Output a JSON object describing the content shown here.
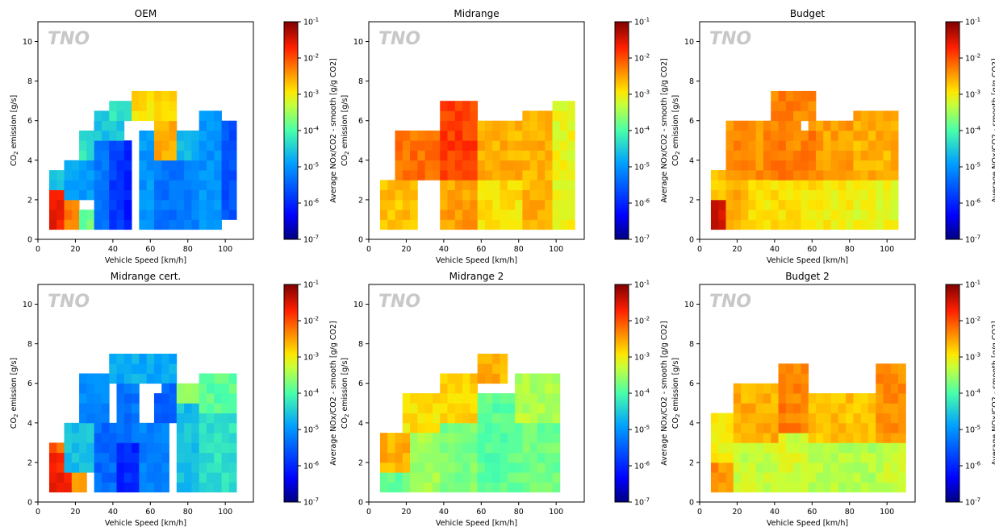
{
  "colorbar": {
    "label": "Average NOx/CO2 - smooth [g/g CO2]",
    "scale": "log",
    "range": [
      1e-07,
      0.1
    ],
    "colormap": "jet",
    "ticks": [
      {
        "base": "10",
        "exp": "-1"
      },
      {
        "base": "10",
        "exp": "-2"
      },
      {
        "base": "10",
        "exp": "-3"
      },
      {
        "base": "10",
        "exp": "-4"
      },
      {
        "base": "10",
        "exp": "-5"
      },
      {
        "base": "10",
        "exp": "-6"
      },
      {
        "base": "10",
        "exp": "-7"
      }
    ]
  },
  "axes": {
    "xlabel": "Vehicle Speed [km/h]",
    "ylabel_main": "CO",
    "ylabel_sub": "2",
    "ylabel_rest": " emission [g/s]",
    "xlim": [
      0,
      115
    ],
    "ylim": [
      0,
      11
    ],
    "xticks": [
      "0",
      "20",
      "40",
      "60",
      "80",
      "100"
    ],
    "yticks": [
      "0",
      "2",
      "4",
      "6",
      "8",
      "10"
    ]
  },
  "watermark": "TNO",
  "chart_data": [
    {
      "type": "heatmap",
      "title": "OEM",
      "value_scale": "log10 NOx/CO2 [g/g CO2]",
      "bin_width_kmh": 4,
      "bin_height_gs": 0.5,
      "zones": [
        {
          "x": [
            6,
            14
          ],
          "y": [
            0.5,
            2.5
          ],
          "log": -1.6
        },
        {
          "x": [
            14,
            22
          ],
          "y": [
            0.5,
            2
          ],
          "log": -2.3
        },
        {
          "x": [
            22,
            30
          ],
          "y": [
            0.5,
            1.5
          ],
          "log": -3.8
        },
        {
          "x": [
            6,
            14
          ],
          "y": [
            2.5,
            3.5
          ],
          "log": -4.5
        },
        {
          "x": [
            14,
            30
          ],
          "y": [
            2,
            4
          ],
          "log": -4.9
        },
        {
          "x": [
            22,
            30
          ],
          "y": [
            4,
            5.5
          ],
          "log": -4.3
        },
        {
          "x": [
            30,
            38
          ],
          "y": [
            0.5,
            6
          ],
          "log": -5.3
        },
        {
          "x": [
            38,
            46
          ],
          "y": [
            0.5,
            5
          ],
          "log": -5.8
        },
        {
          "x": [
            46,
            50
          ],
          "y": [
            0.5,
            5
          ],
          "log": -6.1
        },
        {
          "x": [
            30,
            46
          ],
          "y": [
            5,
            6.5
          ],
          "log": -4.6
        },
        {
          "x": [
            38,
            50
          ],
          "y": [
            6,
            7
          ],
          "log": -4.2
        },
        {
          "x": [
            54,
            62
          ],
          "y": [
            0.5,
            6
          ],
          "log": -5.0
        },
        {
          "x": [
            62,
            74
          ],
          "y": [
            0.5,
            4
          ],
          "log": -5.3
        },
        {
          "x": [
            62,
            74
          ],
          "y": [
            4,
            6
          ],
          "log": -2.6
        },
        {
          "x": [
            50,
            74
          ],
          "y": [
            6,
            7.5
          ],
          "log": -2.9
        },
        {
          "x": [
            74,
            86
          ],
          "y": [
            0.5,
            4
          ],
          "log": -5.2
        },
        {
          "x": [
            74,
            86
          ],
          "y": [
            4,
            5.5
          ],
          "log": -4.7
        },
        {
          "x": [
            86,
            98
          ],
          "y": [
            0.5,
            6.5
          ],
          "log": -5.0
        },
        {
          "x": [
            98,
            106
          ],
          "y": [
            1,
            6
          ],
          "log": -5.6
        }
      ],
      "holes": [
        {
          "x": [
            50,
            54
          ],
          "y": [
            0.5,
            5
          ]
        },
        {
          "x": [
            54,
            62
          ],
          "y": [
            5.5,
            6
          ]
        }
      ]
    },
    {
      "type": "heatmap",
      "title": "Midrange",
      "value_scale": "log10 NOx/CO2 [g/g CO2]",
      "bin_width_kmh": 4,
      "bin_height_gs": 0.5,
      "zones": [
        {
          "x": [
            6,
            26
          ],
          "y": [
            0.5,
            3
          ],
          "log": -2.7
        },
        {
          "x": [
            14,
            38
          ],
          "y": [
            3,
            5.5
          ],
          "log": -2.2
        },
        {
          "x": [
            38,
            58
          ],
          "y": [
            0.5,
            3
          ],
          "log": -2.5
        },
        {
          "x": [
            38,
            58
          ],
          "y": [
            3,
            7
          ],
          "log": -1.9
        },
        {
          "x": [
            58,
            82
          ],
          "y": [
            0.5,
            3
          ],
          "log": -2.9
        },
        {
          "x": [
            58,
            82
          ],
          "y": [
            3,
            6
          ],
          "log": -2.6
        },
        {
          "x": [
            82,
            98
          ],
          "y": [
            0.5,
            6.5
          ],
          "log": -2.6
        },
        {
          "x": [
            98,
            110
          ],
          "y": [
            0.5,
            7
          ],
          "log": -3.1
        }
      ],
      "holes": []
    },
    {
      "type": "heatmap",
      "title": "Budget",
      "value_scale": "log10 NOx/CO2 [g/g CO2]",
      "bin_width_kmh": 4,
      "bin_height_gs": 0.5,
      "zones": [
        {
          "x": [
            6,
            14
          ],
          "y": [
            0.5,
            2
          ],
          "log": -1.5
        },
        {
          "x": [
            6,
            14
          ],
          "y": [
            2,
            3.5
          ],
          "log": -2.8
        },
        {
          "x": [
            14,
            26
          ],
          "y": [
            0.5,
            3
          ],
          "log": -2.6
        },
        {
          "x": [
            14,
            38
          ],
          "y": [
            3,
            6
          ],
          "log": -2.4
        },
        {
          "x": [
            26,
            62
          ],
          "y": [
            0.5,
            3
          ],
          "log": -2.9
        },
        {
          "x": [
            38,
            62
          ],
          "y": [
            3,
            7.5
          ],
          "log": -2.3
        },
        {
          "x": [
            62,
            82
          ],
          "y": [
            0.5,
            3
          ],
          "log": -3.0
        },
        {
          "x": [
            62,
            82
          ],
          "y": [
            3,
            6
          ],
          "log": -2.5
        },
        {
          "x": [
            82,
            106
          ],
          "y": [
            0.5,
            3
          ],
          "log": -3.1
        },
        {
          "x": [
            82,
            106
          ],
          "y": [
            3,
            6.5
          ],
          "log": -2.6
        }
      ],
      "holes": [
        {
          "x": [
            54,
            58
          ],
          "y": [
            5.5,
            6
          ]
        }
      ]
    },
    {
      "type": "heatmap",
      "title": "Midrange cert.",
      "value_scale": "log10 NOx/CO2 [g/g CO2]",
      "bin_width_kmh": 4,
      "bin_height_gs": 0.5,
      "zones": [
        {
          "x": [
            6,
            18
          ],
          "y": [
            0.5,
            2.5
          ],
          "log": -1.7
        },
        {
          "x": [
            18,
            26
          ],
          "y": [
            0.5,
            1.5
          ],
          "log": -2.6
        },
        {
          "x": [
            6,
            14
          ],
          "y": [
            2.5,
            3
          ],
          "log": -2.1
        },
        {
          "x": [
            14,
            30
          ],
          "y": [
            1.5,
            4
          ],
          "log": -4.6
        },
        {
          "x": [
            22,
            38
          ],
          "y": [
            4,
            6.5
          ],
          "log": -5.1
        },
        {
          "x": [
            30,
            42
          ],
          "y": [
            0.5,
            4
          ],
          "log": -5.4
        },
        {
          "x": [
            42,
            54
          ],
          "y": [
            0.5,
            3
          ],
          "log": -6.0
        },
        {
          "x": [
            42,
            54
          ],
          "y": [
            3,
            6
          ],
          "log": -5.3
        },
        {
          "x": [
            38,
            74
          ],
          "y": [
            6,
            7.5
          ],
          "log": -4.8
        },
        {
          "x": [
            54,
            70
          ],
          "y": [
            0.5,
            4
          ],
          "log": -5.2
        },
        {
          "x": [
            62,
            74
          ],
          "y": [
            4,
            6
          ],
          "log": -5.5
        },
        {
          "x": [
            74,
            86
          ],
          "y": [
            0.5,
            5
          ],
          "log": -4.6
        },
        {
          "x": [
            74,
            86
          ],
          "y": [
            5,
            6
          ],
          "log": -3.6
        },
        {
          "x": [
            86,
            106
          ],
          "y": [
            0.5,
            4.5
          ],
          "log": -4.3
        },
        {
          "x": [
            86,
            106
          ],
          "y": [
            4.5,
            6.5
          ],
          "log": -3.9
        }
      ],
      "holes": [
        {
          "x": [
            54,
            58
          ],
          "y": [
            4,
            5.5
          ]
        },
        {
          "x": [
            58,
            62
          ],
          "y": [
            4.5,
            5.5
          ]
        },
        {
          "x": [
            62,
            66
          ],
          "y": [
            5.5,
            6
          ]
        }
      ]
    },
    {
      "type": "heatmap",
      "title": "Midrange 2",
      "value_scale": "log10 NOx/CO2 [g/g CO2]",
      "bin_width_kmh": 4,
      "bin_height_gs": 0.5,
      "zones": [
        {
          "x": [
            6,
            22
          ],
          "y": [
            0.5,
            1.5
          ],
          "log": -3.9
        },
        {
          "x": [
            6,
            22
          ],
          "y": [
            1.5,
            3.5
          ],
          "log": -2.6
        },
        {
          "x": [
            18,
            38
          ],
          "y": [
            3.5,
            5.5
          ],
          "log": -2.9
        },
        {
          "x": [
            22,
            38
          ],
          "y": [
            0.5,
            3.5
          ],
          "log": -3.5
        },
        {
          "x": [
            38,
            58
          ],
          "y": [
            0.5,
            4
          ],
          "log": -3.7
        },
        {
          "x": [
            38,
            58
          ],
          "y": [
            4,
            6.5
          ],
          "log": -2.8
        },
        {
          "x": [
            58,
            74
          ],
          "y": [
            6,
            7.5
          ],
          "log": -2.6
        },
        {
          "x": [
            58,
            78
          ],
          "y": [
            0.5,
            5.5
          ],
          "log": -3.9
        },
        {
          "x": [
            78,
            102
          ],
          "y": [
            0.5,
            4
          ],
          "log": -3.8
        },
        {
          "x": [
            78,
            102
          ],
          "y": [
            4,
            6.5
          ],
          "log": -3.4
        }
      ],
      "holes": []
    },
    {
      "type": "heatmap",
      "title": "Budget 2",
      "value_scale": "log10 NOx/CO2 [g/g CO2]",
      "bin_width_kmh": 4,
      "bin_height_gs": 0.5,
      "zones": [
        {
          "x": [
            6,
            18
          ],
          "y": [
            0.5,
            2
          ],
          "log": -2.4
        },
        {
          "x": [
            6,
            18
          ],
          "y": [
            2,
            4.5
          ],
          "log": -3.0
        },
        {
          "x": [
            18,
            42
          ],
          "y": [
            0.5,
            3
          ],
          "log": -3.3
        },
        {
          "x": [
            18,
            42
          ],
          "y": [
            3,
            6
          ],
          "log": -2.6
        },
        {
          "x": [
            42,
            58
          ],
          "y": [
            0.5,
            3.5
          ],
          "log": -3.2
        },
        {
          "x": [
            42,
            58
          ],
          "y": [
            3.5,
            7
          ],
          "log": -2.3
        },
        {
          "x": [
            58,
            94
          ],
          "y": [
            0.5,
            3
          ],
          "log": -3.4
        },
        {
          "x": [
            58,
            94
          ],
          "y": [
            3,
            5.5
          ],
          "log": -2.7
        },
        {
          "x": [
            94,
            110
          ],
          "y": [
            0.5,
            3
          ],
          "log": -3.3
        },
        {
          "x": [
            94,
            110
          ],
          "y": [
            3,
            7
          ],
          "log": -2.4
        }
      ],
      "holes": []
    }
  ]
}
